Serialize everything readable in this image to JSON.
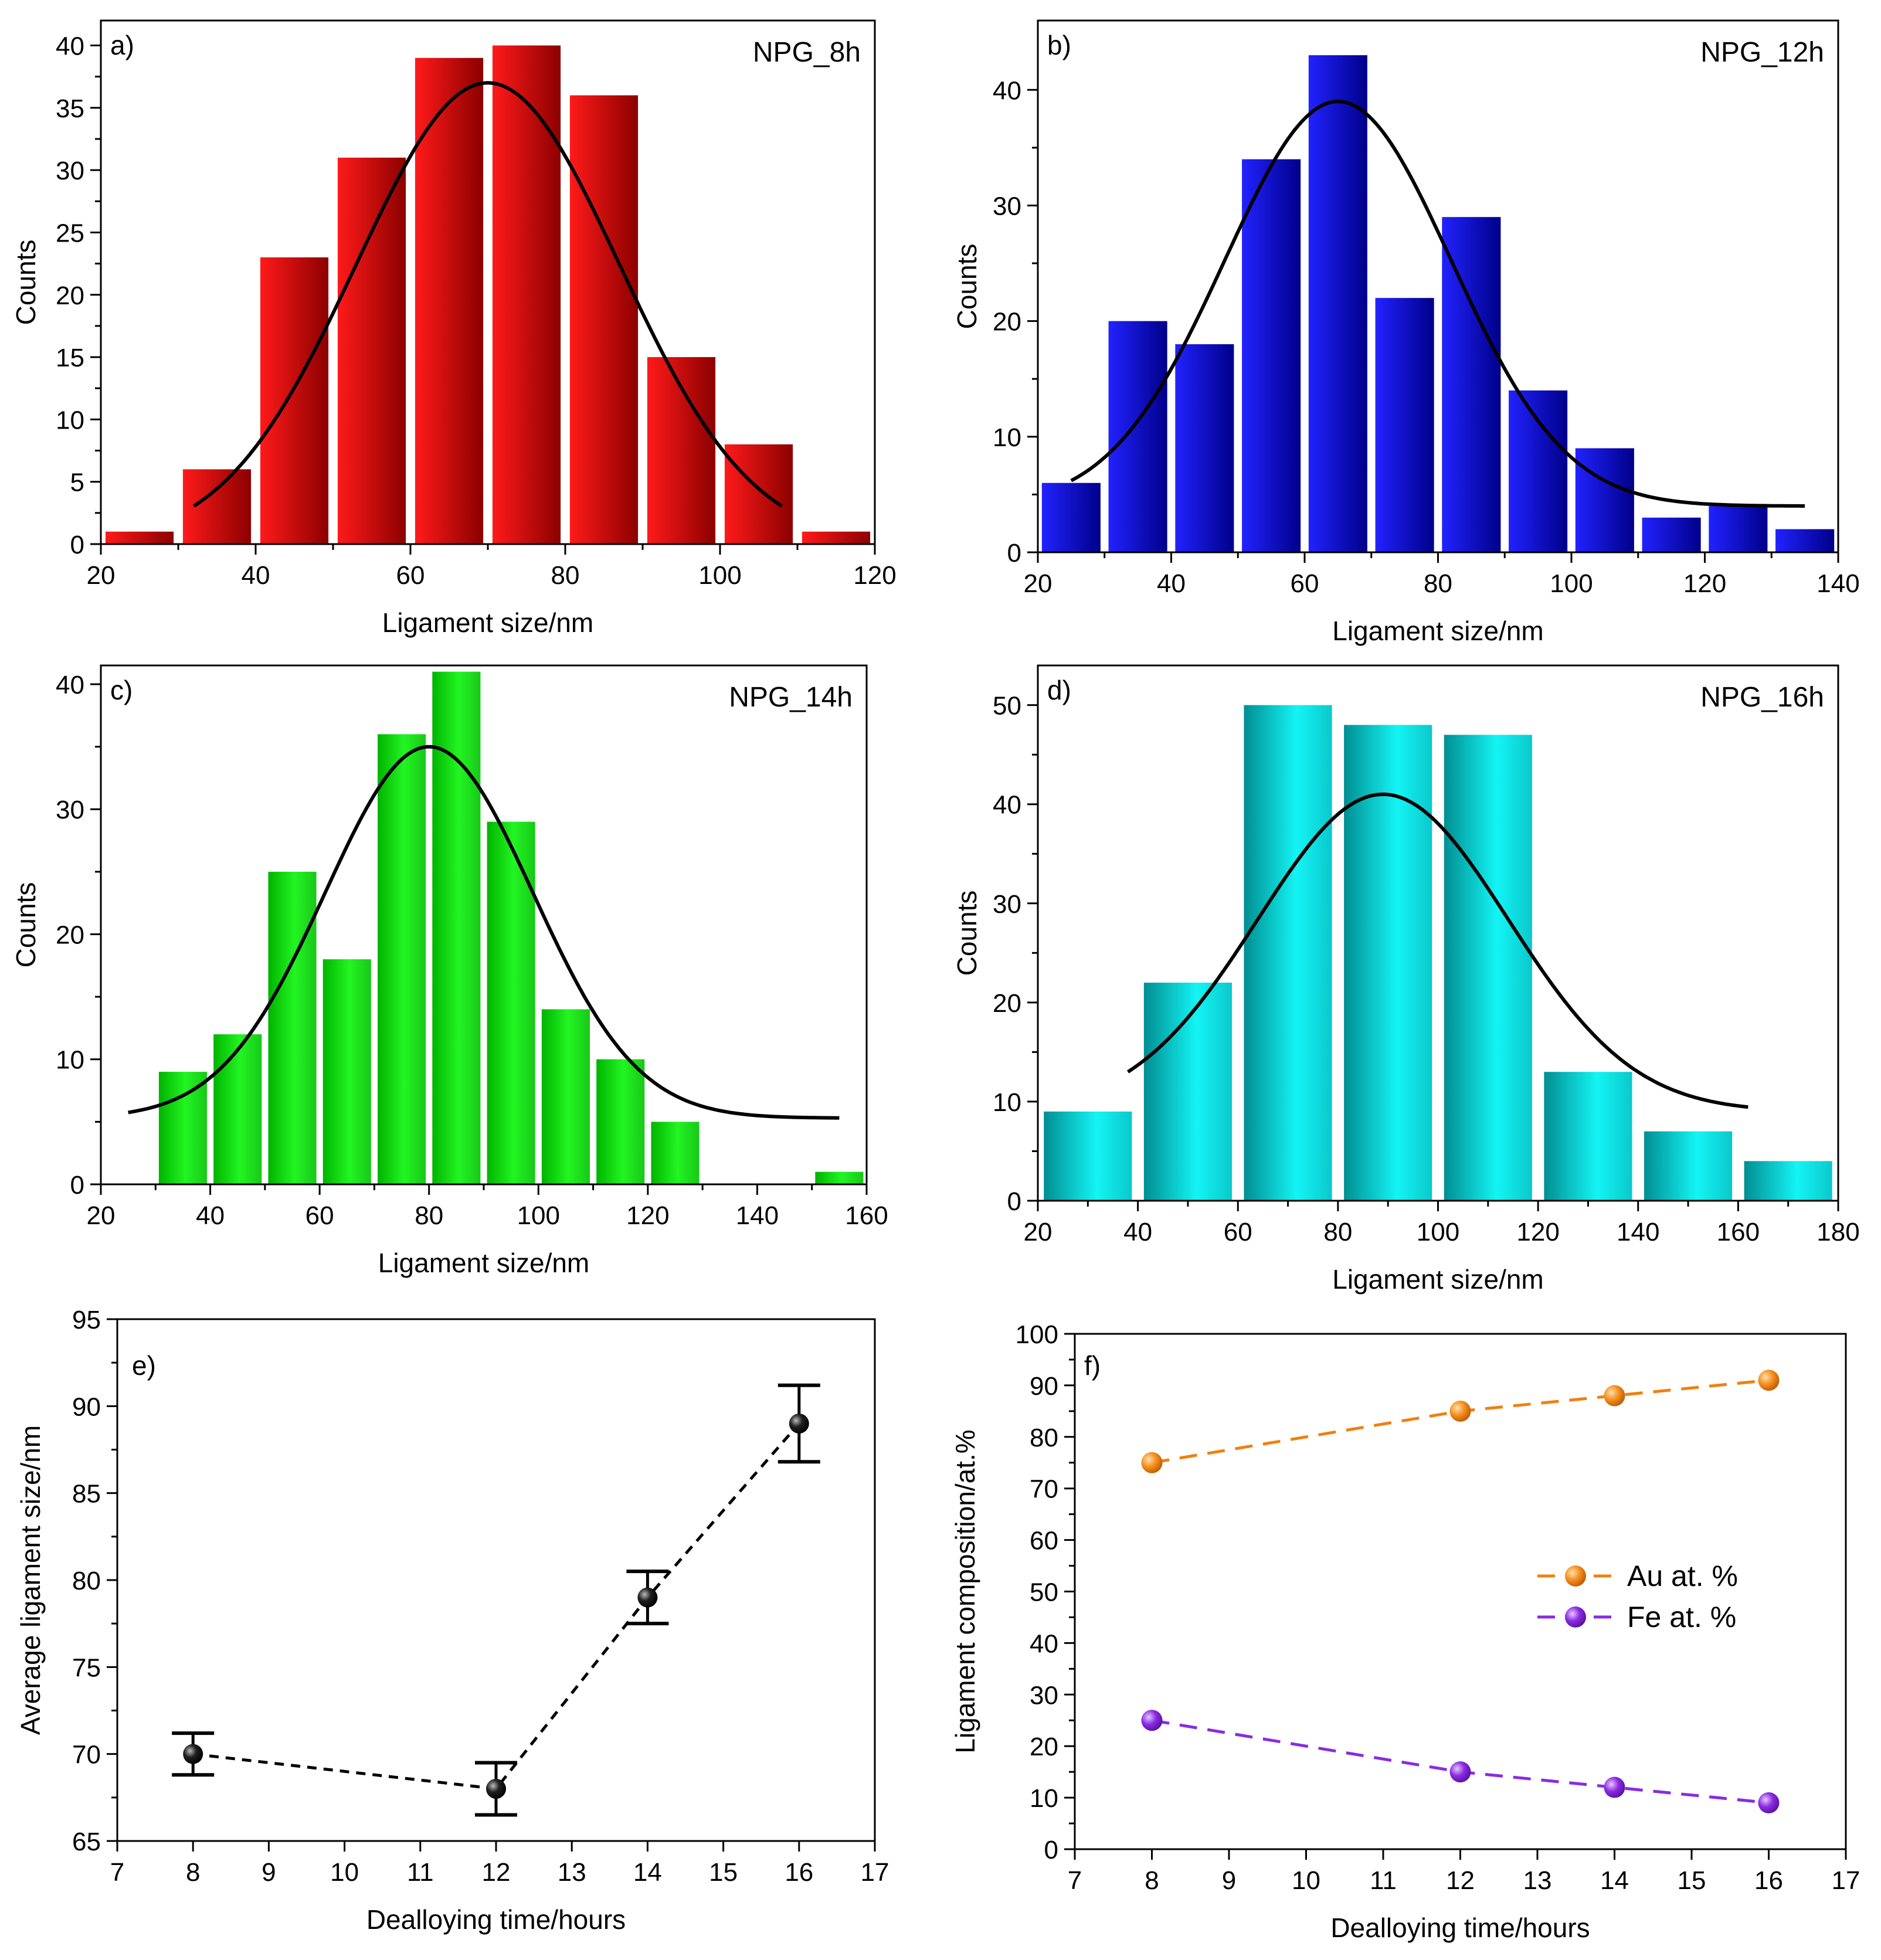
{
  "chart_data": [
    {
      "id": "a",
      "type": "bar",
      "panel_label": "a)",
      "sample_label": "NPG_8h",
      "xlabel": "Ligament size/nm",
      "ylabel": "Counts",
      "xlim": [
        20,
        120
      ],
      "ylim": [
        0,
        42
      ],
      "xticks": [
        20,
        40,
        60,
        80,
        100,
        120
      ],
      "yticks": [
        0,
        5,
        10,
        15,
        20,
        25,
        30,
        35,
        40
      ],
      "bins": [
        [
          20,
          30
        ],
        [
          30,
          40
        ],
        [
          40,
          50
        ],
        [
          50,
          60
        ],
        [
          60,
          70
        ],
        [
          70,
          80
        ],
        [
          80,
          90
        ],
        [
          90,
          100
        ],
        [
          100,
          110
        ],
        [
          110,
          120
        ]
      ],
      "values": [
        1,
        6,
        23,
        31,
        39,
        40,
        36,
        15,
        8,
        1
      ],
      "color": "#e00000",
      "fit": {
        "type": "gaussian",
        "mean": 70,
        "sigma": 17,
        "peak": 37,
        "offset": 0,
        "range": [
          32,
          108
        ]
      }
    },
    {
      "id": "b",
      "type": "bar",
      "panel_label": "b)",
      "sample_label": "NPG_12h",
      "xlabel": "Ligament size/nm",
      "ylabel": "Counts",
      "xlim": [
        20,
        140
      ],
      "ylim": [
        0,
        46
      ],
      "xticks": [
        20,
        40,
        60,
        80,
        100,
        120,
        140
      ],
      "yticks": [
        0,
        10,
        20,
        30,
        40
      ],
      "bins": [
        [
          20,
          30
        ],
        [
          30,
          40
        ],
        [
          40,
          50
        ],
        [
          50,
          60
        ],
        [
          60,
          70
        ],
        [
          70,
          80
        ],
        [
          80,
          90
        ],
        [
          90,
          100
        ],
        [
          100,
          110
        ],
        [
          110,
          120
        ],
        [
          120,
          130
        ],
        [
          130,
          140
        ]
      ],
      "values": [
        6,
        20,
        18,
        34,
        43,
        22,
        29,
        14,
        9,
        3,
        4,
        2
      ],
      "color": "#0a0ad8",
      "fit": {
        "type": "gaussian",
        "mean": 65,
        "sigma": 17,
        "peak": 39,
        "offset": 4,
        "range": [
          25,
          135
        ]
      }
    },
    {
      "id": "c",
      "type": "bar",
      "panel_label": "c)",
      "sample_label": "NPG_14h",
      "xlabel": "Ligament size/nm",
      "ylabel": "Counts",
      "xlim": [
        20,
        160
      ],
      "ylim": [
        0,
        41.5
      ],
      "xticks": [
        20,
        40,
        60,
        80,
        100,
        120,
        140,
        160
      ],
      "yticks": [
        0,
        10,
        20,
        30,
        40
      ],
      "bins": [
        [
          30,
          40
        ],
        [
          40,
          50
        ],
        [
          50,
          60
        ],
        [
          60,
          70
        ],
        [
          70,
          80
        ],
        [
          80,
          90
        ],
        [
          90,
          100
        ],
        [
          100,
          110
        ],
        [
          110,
          120
        ],
        [
          120,
          130
        ],
        [
          150,
          160
        ]
      ],
      "values": [
        9,
        12,
        25,
        18,
        36,
        41,
        29,
        14,
        10,
        5,
        1
      ],
      "color": "#14dc14",
      "fit": {
        "type": "gaussian",
        "mean": 80,
        "sigma": 19,
        "peak": 35,
        "offset": 5.3,
        "range": [
          25,
          155
        ]
      }
    },
    {
      "id": "d",
      "type": "bar",
      "panel_label": "d)",
      "sample_label": "NPG_16h",
      "xlabel": "Ligament size/nm",
      "ylabel": "Counts",
      "xlim": [
        20,
        180
      ],
      "ylim": [
        0,
        54
      ],
      "xticks": [
        20,
        40,
        60,
        80,
        100,
        120,
        140,
        160,
        180
      ],
      "yticks": [
        0,
        10,
        20,
        30,
        40,
        50
      ],
      "bins": [
        [
          20,
          40
        ],
        [
          40,
          60
        ],
        [
          60,
          80
        ],
        [
          80,
          100
        ],
        [
          100,
          120
        ],
        [
          120,
          140
        ],
        [
          140,
          160
        ],
        [
          160,
          180
        ]
      ],
      "values": [
        9,
        22,
        50,
        48,
        47,
        13,
        7,
        4
      ],
      "color": "#10d8dc",
      "fit": {
        "type": "gaussian",
        "mean": 89,
        "sigma": 25,
        "peak": 41,
        "offset": 9,
        "range": [
          38,
          162
        ]
      }
    },
    {
      "id": "e",
      "type": "scatter",
      "panel_label": "e)",
      "xlabel": "Dealloying time/hours",
      "ylabel": "Average ligament size/nm",
      "xlim": [
        7,
        17
      ],
      "ylim": [
        65,
        95
      ],
      "xticks": [
        7,
        8,
        9,
        10,
        11,
        12,
        13,
        14,
        15,
        16,
        17
      ],
      "yticks": [
        65,
        70,
        75,
        80,
        85,
        90,
        95
      ],
      "x": [
        8,
        12,
        14,
        16
      ],
      "y": [
        70,
        68,
        79,
        89
      ],
      "yerr": [
        1.2,
        1.5,
        1.5,
        2.2
      ],
      "color": "#000000",
      "line_style": "dashed"
    },
    {
      "id": "f",
      "type": "line",
      "panel_label": "f)",
      "xlabel": "Dealloying time/hours",
      "ylabel": "Ligament composition/at.%",
      "xlim": [
        7,
        17
      ],
      "ylim": [
        0,
        100
      ],
      "xticks": [
        7,
        8,
        9,
        10,
        11,
        12,
        13,
        14,
        15,
        16,
        17
      ],
      "yticks": [
        0,
        10,
        20,
        30,
        40,
        50,
        60,
        70,
        80,
        90,
        100
      ],
      "x": [
        8,
        12,
        14,
        16
      ],
      "legend_position": "center-right",
      "series": [
        {
          "name": "Au at. %",
          "values": [
            75,
            85,
            88,
            91
          ],
          "color": "#f08010"
        },
        {
          "name": "Fe at. %",
          "values": [
            25,
            15,
            12,
            9
          ],
          "color": "#8a2be2"
        }
      ]
    }
  ]
}
